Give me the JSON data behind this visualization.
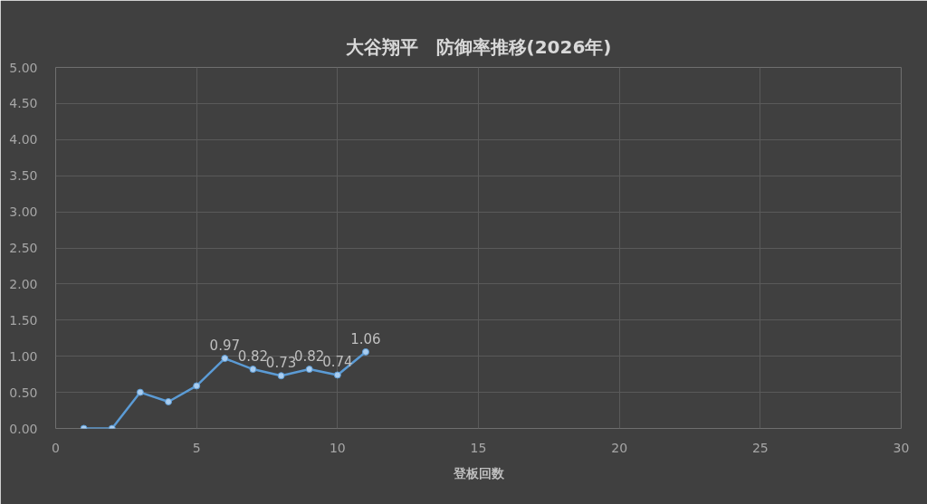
{
  "chart_data": {
    "type": "line",
    "title": "大谷翔平　防御率推移(2026年)",
    "xlabel": "登板回数",
    "x": [
      1,
      2,
      3,
      4,
      5,
      6,
      7,
      8,
      9,
      10,
      11
    ],
    "series": [
      {
        "color": "#5b9bd5",
        "values": [
          0,
          0,
          0.5,
          0.37,
          0.59,
          0.97,
          0.82,
          0.73,
          0.82,
          0.74,
          1.06
        ],
        "value_labels": [
          null,
          null,
          null,
          null,
          null,
          "0.97",
          "0.82",
          "0.73",
          "0.82",
          "0.74",
          "1.06"
        ]
      }
    ],
    "xlim": [
      0,
      30
    ],
    "xticks": [
      0,
      5,
      10,
      15,
      20,
      25,
      30
    ],
    "ylim": [
      0,
      5
    ],
    "yticks": [
      {
        "value": 0,
        "label": "0.00"
      },
      {
        "value": 0.5,
        "label": "0.50"
      },
      {
        "value": 1,
        "label": "1.00"
      },
      {
        "value": 1.5,
        "label": "1.50"
      },
      {
        "value": 2,
        "label": "2.00"
      },
      {
        "value": 2.5,
        "label": "2.50"
      },
      {
        "value": 3,
        "label": "3.00"
      },
      {
        "value": 3.5,
        "label": "3.50"
      },
      {
        "value": 4,
        "label": "4.00"
      },
      {
        "value": 4.5,
        "label": "4.50"
      },
      {
        "value": 5,
        "label": "5.00"
      }
    ],
    "grid": true,
    "marker": "circle",
    "line_style": "solid"
  }
}
